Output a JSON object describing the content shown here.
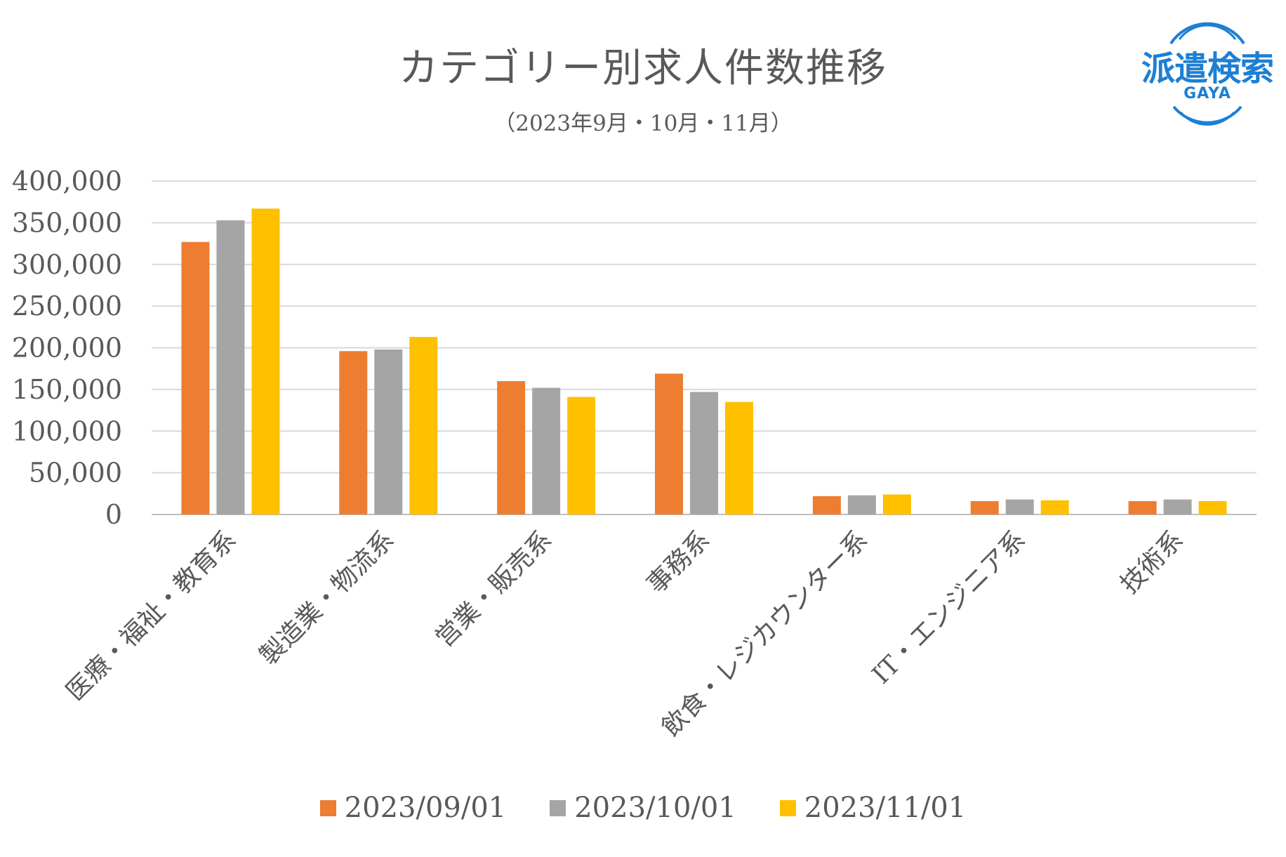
{
  "title": "カテゴリー別求人件数推移",
  "subtitle": "（2023年9月・10月・11月）",
  "logo": {
    "main": "派遣検索",
    "sub": "GAYA",
    "color": "#1d7fd4"
  },
  "colors": {
    "grid": "#d9d9d9",
    "axis": "#bfbfbf",
    "text": "#595959"
  },
  "chart_data": {
    "type": "bar",
    "title": "カテゴリー別求人件数推移",
    "subtitle": "（2023年9月・10月・11月）",
    "categories": [
      "医療・福祉・教育系",
      "製造業・物流系",
      "営業・販売系",
      "事務系",
      "飲食・レジカウンター系",
      "IT・エンジニア系",
      "技術系"
    ],
    "series": [
      {
        "name": "2023/09/01",
        "color": "#ed7d31",
        "values": [
          327000,
          196000,
          160000,
          169000,
          22000,
          16000,
          16000
        ]
      },
      {
        "name": "2023/10/01",
        "color": "#a5a5a5",
        "values": [
          353000,
          198000,
          152000,
          147000,
          23000,
          18000,
          18000
        ]
      },
      {
        "name": "2023/11/01",
        "color": "#ffc000",
        "values": [
          367000,
          213000,
          141000,
          135000,
          24000,
          17000,
          16000
        ]
      }
    ],
    "ylim": [
      0,
      400000
    ],
    "yticks": [
      0,
      50000,
      100000,
      150000,
      200000,
      250000,
      300000,
      350000,
      400000
    ],
    "ytick_labels": [
      "0",
      "50,000",
      "100,000",
      "150,000",
      "200,000",
      "250,000",
      "300,000",
      "350,000",
      "400,000"
    ],
    "grid": true,
    "legend_position": "bottom"
  }
}
